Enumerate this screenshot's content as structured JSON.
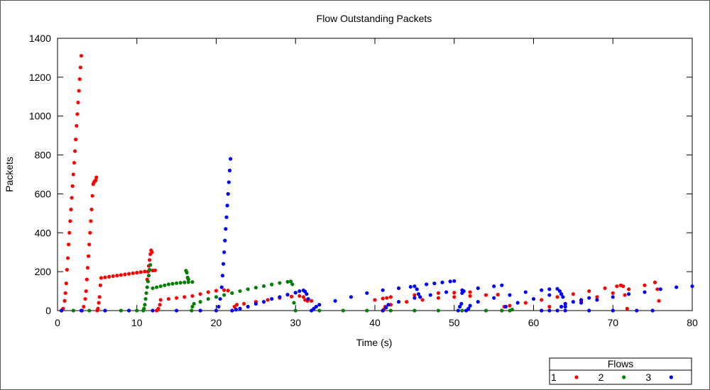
{
  "chart_data": {
    "type": "scatter",
    "title": "Flow Outstanding Packets",
    "xlabel": "Time (s)",
    "ylabel": "Packets",
    "xlim": [
      0,
      80
    ],
    "ylim": [
      0,
      1400
    ],
    "xticks": [
      0,
      10,
      20,
      30,
      40,
      50,
      60,
      70,
      80
    ],
    "yticks": [
      0,
      200,
      400,
      600,
      800,
      1000,
      1200,
      1400
    ],
    "grid": false,
    "legend": {
      "title": "Flows",
      "placement": "bottom-right",
      "entries": [
        "1",
        "2",
        "3"
      ]
    },
    "series": [
      {
        "name": "1",
        "color": "#ff0000",
        "points": [
          [
            0.5,
            0
          ],
          [
            0.7,
            10
          ],
          [
            0.9,
            50
          ],
          [
            1.0,
            90
          ],
          [
            1.1,
            140
          ],
          [
            1.2,
            210
          ],
          [
            1.3,
            270
          ],
          [
            1.4,
            340
          ],
          [
            1.5,
            400
          ],
          [
            1.6,
            460
          ],
          [
            1.7,
            520
          ],
          [
            1.8,
            580
          ],
          [
            1.9,
            640
          ],
          [
            2.0,
            700
          ],
          [
            2.1,
            760
          ],
          [
            2.2,
            820
          ],
          [
            2.3,
            880
          ],
          [
            2.4,
            950
          ],
          [
            2.5,
            1010
          ],
          [
            2.6,
            1070
          ],
          [
            2.7,
            1130
          ],
          [
            2.8,
            1190
          ],
          [
            2.9,
            1250
          ],
          [
            3.0,
            1310
          ],
          [
            3.1,
            0
          ],
          [
            3.3,
            20
          ],
          [
            3.5,
            60
          ],
          [
            3.6,
            100
          ],
          [
            3.7,
            160
          ],
          [
            3.8,
            220
          ],
          [
            3.9,
            280
          ],
          [
            4.0,
            340
          ],
          [
            4.1,
            400
          ],
          [
            4.2,
            460
          ],
          [
            4.3,
            520
          ],
          [
            4.4,
            590
          ],
          [
            4.5,
            650
          ],
          [
            4.6,
            660
          ],
          [
            4.7,
            665
          ],
          [
            4.8,
            670
          ],
          [
            4.9,
            685
          ],
          [
            5.0,
            0
          ],
          [
            5.1,
            10
          ],
          [
            5.2,
            40
          ],
          [
            5.3,
            70
          ],
          [
            5.4,
            130
          ],
          [
            5.5,
            168
          ],
          [
            6.0,
            171
          ],
          [
            6.5,
            174
          ],
          [
            7.0,
            177
          ],
          [
            7.5,
            180
          ],
          [
            8.0,
            183
          ],
          [
            8.5,
            186
          ],
          [
            9.0,
            189
          ],
          [
            9.5,
            192
          ],
          [
            10.0,
            195
          ],
          [
            10.5,
            198
          ],
          [
            11.0,
            201
          ],
          [
            11.5,
            204
          ],
          [
            12.0,
            206
          ],
          [
            12.3,
            207
          ],
          [
            11.3,
            160
          ],
          [
            11.4,
            200
          ],
          [
            11.5,
            230
          ],
          [
            11.6,
            260
          ],
          [
            11.7,
            290
          ],
          [
            11.8,
            310
          ],
          [
            11.9,
            300
          ],
          [
            12.5,
            0
          ],
          [
            12.7,
            10
          ],
          [
            12.9,
            30
          ],
          [
            13.0,
            55
          ],
          [
            14.0,
            60
          ],
          [
            15.0,
            65
          ],
          [
            16.0,
            70
          ],
          [
            17.0,
            75
          ],
          [
            18.0,
            85
          ],
          [
            19.0,
            95
          ],
          [
            20.0,
            102
          ],
          [
            21.0,
            105
          ],
          [
            21.5,
            103
          ],
          [
            22.0,
            0
          ],
          [
            22.3,
            20
          ],
          [
            22.6,
            30
          ],
          [
            23.5,
            35
          ],
          [
            25.0,
            45
          ],
          [
            26.5,
            55
          ],
          [
            28.0,
            65
          ],
          [
            29.5,
            72
          ],
          [
            30.5,
            75
          ],
          [
            31.0,
            70
          ],
          [
            31.2,
            55
          ],
          [
            31.5,
            50
          ],
          [
            32.0,
            50
          ],
          [
            40.0,
            55
          ],
          [
            41.0,
            62
          ],
          [
            41.5,
            65
          ],
          [
            42.0,
            70
          ],
          [
            45.0,
            80
          ],
          [
            48.0,
            90
          ],
          [
            50.0,
            92
          ],
          [
            52.0,
            95
          ],
          [
            41.0,
            0
          ],
          [
            41.1,
            5
          ],
          [
            41.3,
            20
          ],
          [
            42.0,
            30
          ],
          [
            44.0,
            45
          ],
          [
            46.0,
            55
          ],
          [
            48.0,
            65
          ],
          [
            50.0,
            70
          ],
          [
            52.0,
            75
          ],
          [
            54.0,
            80
          ],
          [
            55.5,
            82
          ],
          [
            56.0,
            0
          ],
          [
            56.3,
            20
          ],
          [
            57.0,
            25
          ],
          [
            59.0,
            40
          ],
          [
            61.0,
            55
          ],
          [
            63.0,
            70
          ],
          [
            65.0,
            85
          ],
          [
            67.0,
            100
          ],
          [
            69.0,
            115
          ],
          [
            70.5,
            125
          ],
          [
            71.0,
            130
          ],
          [
            71.3,
            125
          ],
          [
            71.5,
            80
          ],
          [
            71.8,
            10
          ],
          [
            61.0,
            0
          ],
          [
            62.0,
            20
          ],
          [
            64.0,
            35
          ],
          [
            66.0,
            50
          ],
          [
            68.0,
            70
          ],
          [
            70.0,
            90
          ],
          [
            72.0,
            110
          ],
          [
            74.0,
            130
          ],
          [
            75.3,
            145
          ],
          [
            75.6,
            110
          ],
          [
            75.8,
            50
          ]
        ]
      },
      {
        "name": "2",
        "color": "#008000",
        "points": [
          [
            0.5,
            0
          ],
          [
            2.0,
            0
          ],
          [
            4.0,
            0
          ],
          [
            6.0,
            0
          ],
          [
            8.0,
            0
          ],
          [
            10.0,
            0
          ],
          [
            10.8,
            0
          ],
          [
            10.9,
            10
          ],
          [
            11.0,
            30
          ],
          [
            11.1,
            60
          ],
          [
            11.2,
            90
          ],
          [
            11.3,
            120
          ],
          [
            11.4,
            150
          ],
          [
            11.5,
            180
          ],
          [
            11.6,
            210
          ],
          [
            11.7,
            235
          ],
          [
            12.0,
            115
          ],
          [
            12.5,
            120
          ],
          [
            13.0,
            125
          ],
          [
            13.5,
            130
          ],
          [
            14.0,
            135
          ],
          [
            14.5,
            138
          ],
          [
            15.0,
            141
          ],
          [
            15.5,
            143
          ],
          [
            16.0,
            145
          ],
          [
            16.5,
            146
          ],
          [
            17.0,
            147
          ],
          [
            16.2,
            205
          ],
          [
            16.3,
            195
          ],
          [
            16.4,
            170
          ],
          [
            16.5,
            160
          ],
          [
            16.9,
            0
          ],
          [
            17.0,
            20
          ],
          [
            17.2,
            35
          ],
          [
            18.0,
            45
          ],
          [
            19.0,
            60
          ],
          [
            20.0,
            70
          ],
          [
            21.0,
            80
          ],
          [
            22.0,
            90
          ],
          [
            23.0,
            100
          ],
          [
            24.0,
            110
          ],
          [
            25.0,
            118
          ],
          [
            26.0,
            126
          ],
          [
            27.0,
            134
          ],
          [
            28.0,
            142
          ],
          [
            29.0,
            148
          ],
          [
            29.4,
            150
          ],
          [
            29.6,
            135
          ],
          [
            29.8,
            40
          ],
          [
            30.0,
            0
          ],
          [
            33.0,
            0
          ],
          [
            36.0,
            0
          ],
          [
            39.0,
            0
          ],
          [
            42.0,
            0
          ],
          [
            45.0,
            0
          ],
          [
            48.0,
            0
          ],
          [
            51.0,
            0
          ],
          [
            54.0,
            0
          ],
          [
            56.0,
            0
          ],
          [
            57.0,
            0
          ],
          [
            57.3,
            5
          ]
        ]
      },
      {
        "name": "3",
        "color": "#0000ff",
        "points": [
          [
            0.5,
            0
          ],
          [
            3.0,
            0
          ],
          [
            6.0,
            0
          ],
          [
            9.0,
            0
          ],
          [
            12.0,
            0
          ],
          [
            15.0,
            0
          ],
          [
            18.0,
            0
          ],
          [
            20.0,
            0
          ],
          [
            20.3,
            20
          ],
          [
            20.5,
            60
          ],
          [
            20.7,
            120
          ],
          [
            20.8,
            180
          ],
          [
            20.9,
            240
          ],
          [
            21.0,
            300
          ],
          [
            21.1,
            360
          ],
          [
            21.2,
            420
          ],
          [
            21.3,
            480
          ],
          [
            21.4,
            540
          ],
          [
            21.5,
            600
          ],
          [
            21.6,
            660
          ],
          [
            21.7,
            720
          ],
          [
            21.8,
            780
          ],
          [
            22.0,
            0
          ],
          [
            22.5,
            5
          ],
          [
            23.0,
            10
          ],
          [
            24.0,
            20
          ],
          [
            25.0,
            35
          ],
          [
            26.0,
            45
          ],
          [
            27.0,
            60
          ],
          [
            28.0,
            70
          ],
          [
            29.0,
            82
          ],
          [
            30.0,
            92
          ],
          [
            30.5,
            100
          ],
          [
            31.0,
            104
          ],
          [
            31.2,
            98
          ],
          [
            31.4,
            85
          ],
          [
            31.6,
            60
          ],
          [
            32.0,
            0
          ],
          [
            32.3,
            10
          ],
          [
            32.6,
            20
          ],
          [
            33.0,
            30
          ],
          [
            35.0,
            50
          ],
          [
            37.0,
            70
          ],
          [
            39.0,
            90
          ],
          [
            41.0,
            105
          ],
          [
            43.0,
            115
          ],
          [
            44.5,
            122
          ],
          [
            45.0,
            125
          ],
          [
            45.3,
            110
          ],
          [
            45.5,
            85
          ],
          [
            45.7,
            70
          ],
          [
            41.0,
            0
          ],
          [
            41.4,
            15
          ],
          [
            41.7,
            30
          ],
          [
            43.0,
            45
          ],
          [
            45.0,
            65
          ],
          [
            47.0,
            80
          ],
          [
            49.0,
            95
          ],
          [
            51.0,
            105
          ],
          [
            53.0,
            115
          ],
          [
            55.0,
            125
          ],
          [
            56.0,
            130
          ],
          [
            46.5,
            135
          ],
          [
            47.5,
            140
          ],
          [
            48.5,
            145
          ],
          [
            49.5,
            150
          ],
          [
            50.0,
            152
          ],
          [
            50.5,
            0
          ],
          [
            50.7,
            20
          ],
          [
            50.9,
            35
          ],
          [
            51.0,
            90
          ],
          [
            51.2,
            100
          ],
          [
            51.5,
            0
          ],
          [
            51.8,
            10
          ],
          [
            52.0,
            25
          ],
          [
            53.0,
            45
          ],
          [
            55.0,
            65
          ],
          [
            57.0,
            80
          ],
          [
            59.0,
            95
          ],
          [
            61.0,
            105
          ],
          [
            62.0,
            110
          ],
          [
            63.0,
            112
          ],
          [
            63.3,
            100
          ],
          [
            63.5,
            85
          ],
          [
            63.7,
            70
          ],
          [
            56.5,
            20
          ],
          [
            58.0,
            40
          ],
          [
            60.0,
            60
          ],
          [
            62.0,
            80
          ],
          [
            63.5,
            85
          ],
          [
            62.0,
            0
          ],
          [
            64.0,
            20
          ],
          [
            66.0,
            40
          ],
          [
            68.0,
            55
          ],
          [
            70.0,
            70
          ],
          [
            72.0,
            85
          ],
          [
            74.0,
            95
          ],
          [
            76.0,
            110
          ],
          [
            78.0,
            120
          ],
          [
            80.0,
            125
          ],
          [
            63.0,
            0
          ],
          [
            63.5,
            20
          ],
          [
            64.0,
            35
          ],
          [
            65.0,
            45
          ],
          [
            66.0,
            55
          ],
          [
            67.0,
            65
          ],
          [
            61.0,
            0
          ],
          [
            64.0,
            0
          ],
          [
            67.0,
            0
          ],
          [
            70.0,
            0
          ],
          [
            73.0,
            0
          ],
          [
            75.0,
            0
          ]
        ]
      }
    ]
  }
}
